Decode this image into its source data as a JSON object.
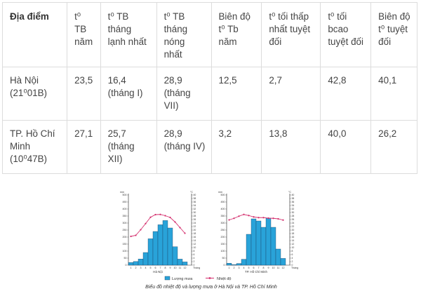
{
  "table": {
    "headers": [
      "Địa điểm",
      "t⁰ TB năm",
      "t⁰ TB tháng lạnh nhất",
      "t⁰ TB tháng nóng nhất",
      "Biên độ t⁰ Tb năm",
      "t⁰ tối thấp nhất tuyệt đối",
      "t⁰ tối bcao tuyệt đối",
      "Biên độ t⁰ tuyệt đối"
    ],
    "rows": [
      [
        "Hà Nội (21⁰01B)",
        "23,5",
        "16,4 (tháng I)",
        "28,9 (tháng VII)",
        "12,5",
        "2,7",
        "42,8",
        "40,1"
      ],
      [
        "TP. Hồ Chí Minh (10⁰47B)",
        "27,1",
        "25,7 (tháng XII)",
        "28,9 (tháng IV)",
        "3,2",
        "13,8",
        "40,0",
        "26,2"
      ]
    ]
  },
  "figure": {
    "legend_rain": "Lượng mưa",
    "legend_temp": "Nhiệt độ",
    "caption": "Biểu đồ nhiệt độ và lượng mưa ở Hà Nội và TP. Hồ Chí Minh",
    "left_axis_unit": "mm",
    "right_axis_unit": "°C",
    "month_axis_label": "Tháng"
  },
  "chart_data": [
    {
      "type": "bar",
      "title": "Hà Nội",
      "categories": [
        "1",
        "2",
        "3",
        "4",
        "5",
        "6",
        "7",
        "8",
        "9",
        "10",
        "11",
        "12"
      ],
      "series": [
        {
          "name": "Lượng mưa",
          "type": "bar",
          "axis": "left",
          "unit": "mm",
          "values": [
            19,
            26,
            44,
            90,
            188,
            240,
            288,
            318,
            265,
            131,
            43,
            23
          ]
        },
        {
          "name": "Nhiệt độ",
          "type": "line",
          "axis": "right",
          "unit": "°C",
          "values": [
            16.4,
            17.0,
            20.2,
            23.7,
            27.3,
            28.8,
            28.9,
            28.2,
            27.2,
            24.6,
            21.4,
            18.2
          ]
        }
      ],
      "ylim_left": [
        0,
        500
      ],
      "ylim_right": [
        0,
        40
      ]
    },
    {
      "type": "bar",
      "title": "TP. Hồ Chí Minh",
      "categories": [
        "1",
        "2",
        "3",
        "4",
        "5",
        "6",
        "7",
        "8",
        "9",
        "10",
        "11",
        "12"
      ],
      "series": [
        {
          "name": "Lượng mưa",
          "type": "bar",
          "axis": "left",
          "unit": "mm",
          "values": [
            14,
            4,
            12,
            42,
            220,
            330,
            315,
            270,
            335,
            270,
            115,
            48
          ]
        },
        {
          "name": "Nhiệt độ",
          "type": "line",
          "axis": "right",
          "unit": "°C",
          "values": [
            25.8,
            26.7,
            27.9,
            28.9,
            28.3,
            27.5,
            27.1,
            27.1,
            26.8,
            26.7,
            26.4,
            25.7
          ]
        }
      ],
      "ylim_left": [
        0,
        500
      ],
      "ylim_right": [
        0,
        40
      ]
    }
  ]
}
